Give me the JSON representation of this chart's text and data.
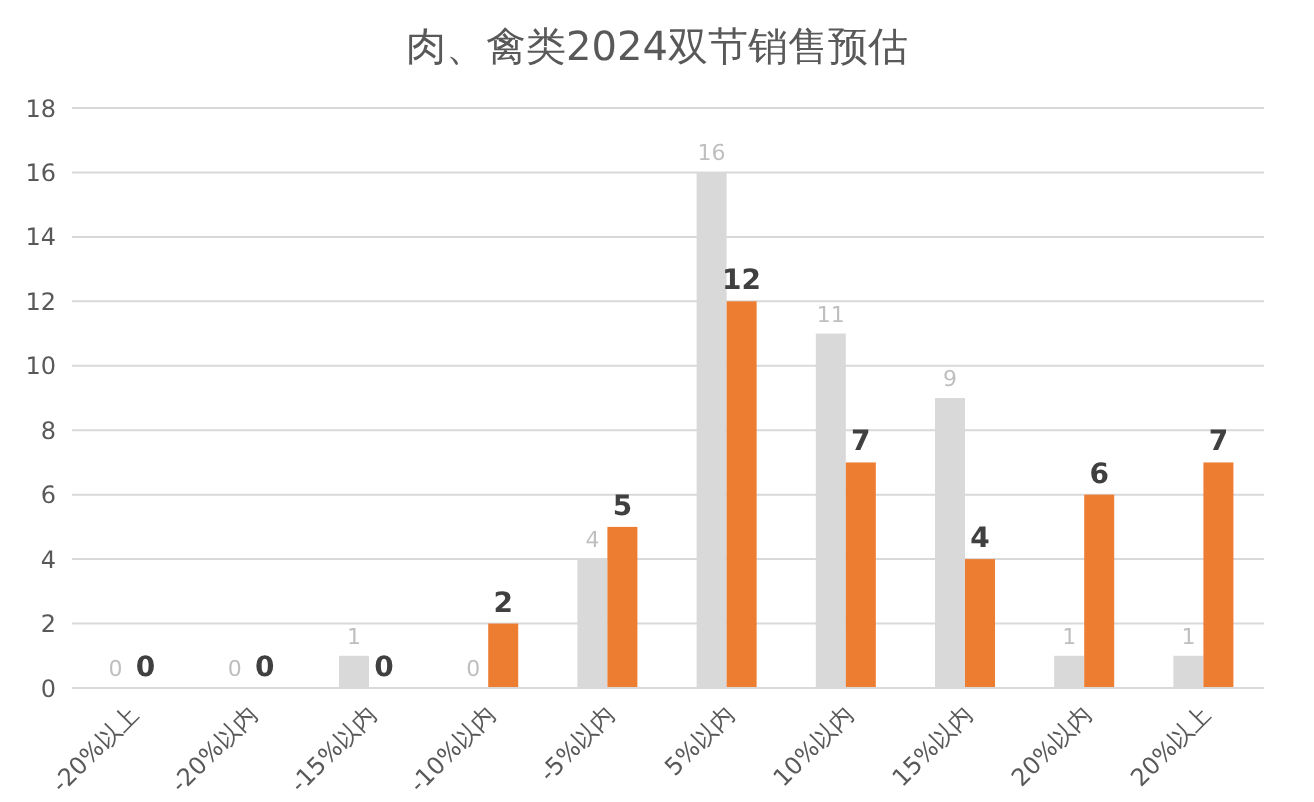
{
  "chart_data": {
    "type": "bar",
    "title": "肉、禽类2024双节销售预估",
    "categories": [
      "-20%以上",
      "-20%以内",
      "-15%以内",
      "-10%以内",
      "-5%以内",
      "5%以内",
      "10%以内",
      "15%以内",
      "20%以内",
      "20%以上"
    ],
    "series": [
      {
        "color": "#d9d9d9",
        "values": [
          0,
          0,
          1,
          0,
          4,
          16,
          11,
          9,
          1,
          1
        ]
      },
      {
        "color": "#ed7d31",
        "values": [
          0,
          0,
          0,
          2,
          5,
          12,
          7,
          4,
          6,
          7
        ]
      }
    ],
    "ylim": [
      0,
      18
    ],
    "yticks": [
      0,
      2,
      4,
      6,
      8,
      10,
      12,
      14,
      16,
      18
    ],
    "grid": "y",
    "data_labels": true
  }
}
